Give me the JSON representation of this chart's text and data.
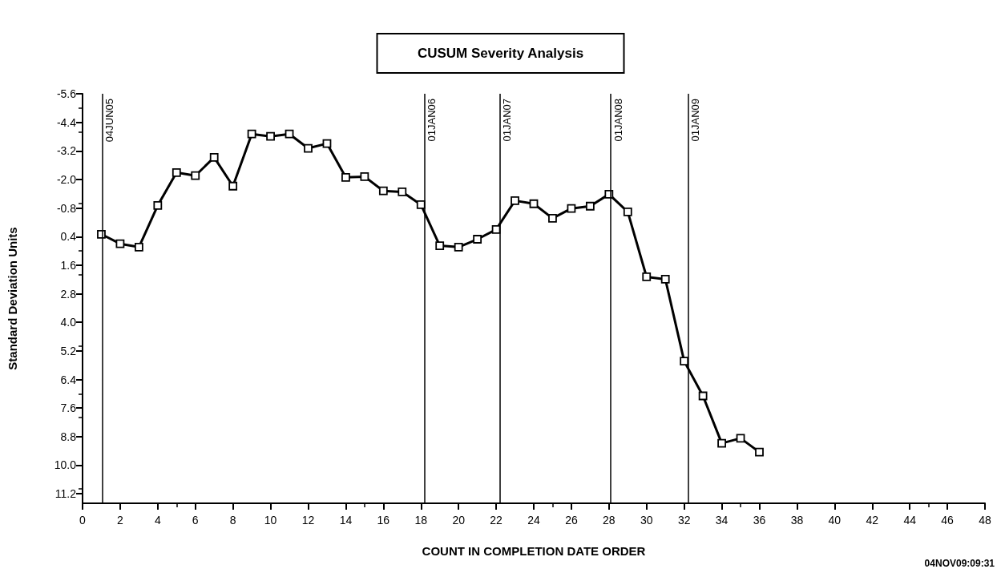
{
  "chart_data": {
    "type": "line",
    "title": "CUSUM Severity Analysis",
    "xlabel": "COUNT IN COMPLETION DATE ORDER",
    "ylabel": "Standard Deviation Units",
    "x": [
      1,
      2,
      3,
      4,
      5,
      6,
      7,
      8,
      9,
      10,
      11,
      12,
      13,
      14,
      15,
      16,
      17,
      18,
      19,
      20,
      21,
      22,
      23,
      24,
      25,
      26,
      27,
      28,
      29,
      30,
      31,
      32,
      33,
      34,
      35,
      36
    ],
    "series": [
      {
        "color": "#000000",
        "values": [
          0.3,
          0.7,
          0.84,
          -0.91,
          -2.29,
          -2.16,
          -2.93,
          -1.72,
          -3.91,
          -3.81,
          -3.91,
          -3.31,
          -3.51,
          -2.09,
          -2.12,
          -1.52,
          -1.48,
          -0.94,
          0.78,
          0.84,
          0.51,
          0.1,
          -1.11,
          -0.98,
          -0.37,
          -0.78,
          -0.88,
          -1.38,
          -0.64,
          2.09,
          2.19,
          5.63,
          7.09,
          9.08,
          8.87,
          9.45
        ]
      }
    ],
    "xlim": [
      0,
      48
    ],
    "xticks": [
      0,
      2,
      4,
      6,
      8,
      10,
      12,
      14,
      16,
      18,
      20,
      22,
      24,
      26,
      28,
      30,
      32,
      34,
      36,
      38,
      40,
      42,
      44,
      46,
      48
    ],
    "ylim": [
      11.6,
      -5.6
    ],
    "yticks": [
      -5.6,
      -4.4,
      -3.2,
      {
        "value": -2.0,
        "label": "-2.0"
      },
      -0.8,
      0.4,
      1.6,
      2.8,
      {
        "value": 4.0,
        "label": "4.0"
      },
      5.2,
      6.4,
      7.6,
      8.8,
      {
        "value": 10.0,
        "label": "10.0"
      },
      11.2
    ],
    "ref_lines": [
      {
        "axis": "x",
        "value": 1.06,
        "label": "04JUN05"
      },
      {
        "axis": "x",
        "value": 18.2,
        "label": "01JAN06"
      },
      {
        "axis": "x",
        "value": 22.2,
        "label": "01JAN07"
      },
      {
        "axis": "x",
        "value": 28.1,
        "label": "01JAN08"
      },
      {
        "axis": "x",
        "value": 32.2,
        "label": "01JAN09"
      }
    ],
    "annotations": [
      "04NOV09:09:31"
    ],
    "marker": "square",
    "line_style": "solid"
  }
}
